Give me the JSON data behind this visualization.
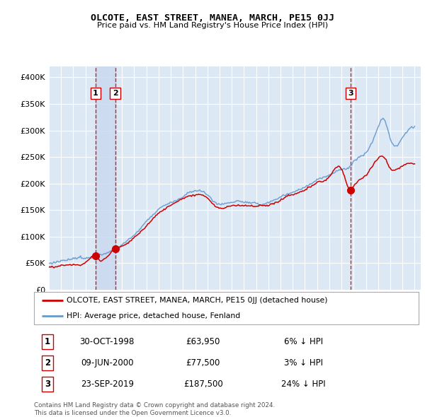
{
  "title": "OLCOTE, EAST STREET, MANEA, MARCH, PE15 0JJ",
  "subtitle": "Price paid vs. HM Land Registry's House Price Index (HPI)",
  "ylim": [
    0,
    420000
  ],
  "yticks": [
    0,
    50000,
    100000,
    150000,
    200000,
    250000,
    300000,
    350000,
    400000
  ],
  "ytick_labels": [
    "£0",
    "£50K",
    "£100K",
    "£150K",
    "£200K",
    "£250K",
    "£300K",
    "£350K",
    "£400K"
  ],
  "background_color": "#ffffff",
  "plot_bg_color": "#dde8f5",
  "grid_color": "#ffffff",
  "hpi_color": "#6699cc",
  "price_color": "#cc0000",
  "sale_marker_color": "#cc0000",
  "dashed_line_color": "#cc0000",
  "shade_color": "#c8d8ee",
  "sales": [
    {
      "date_num": 1998.83,
      "price": 63950,
      "label": "1"
    },
    {
      "date_num": 2000.44,
      "price": 77500,
      "label": "2"
    },
    {
      "date_num": 2019.73,
      "price": 187500,
      "label": "3"
    }
  ],
  "sale_labels_table": [
    {
      "num": "1",
      "date": "30-OCT-1998",
      "price": "£63,950",
      "pct": "6% ↓ HPI"
    },
    {
      "num": "2",
      "date": "09-JUN-2000",
      "price": "£77,500",
      "pct": "3% ↓ HPI"
    },
    {
      "num": "3",
      "date": "23-SEP-2019",
      "price": "£187,500",
      "pct": "24% ↓ HPI"
    }
  ],
  "legend_line1": "OLCOTE, EAST STREET, MANEA, MARCH, PE15 0JJ (detached house)",
  "legend_line2": "HPI: Average price, detached house, Fenland",
  "footer": "Contains HM Land Registry data © Crown copyright and database right 2024.\nThis data is licensed under the Open Government Licence v3.0.",
  "hpi_waypoints_x": [
    1995.0,
    1996.0,
    1997.0,
    1998.0,
    1999.0,
    2000.0,
    2001.0,
    2002.0,
    2003.0,
    2004.0,
    2005.0,
    2006.0,
    2007.0,
    2008.0,
    2009.0,
    2010.0,
    2011.0,
    2012.0,
    2013.0,
    2014.0,
    2015.0,
    2016.0,
    2017.0,
    2018.0,
    2019.0,
    2019.73,
    2020.0,
    2021.0,
    2022.0,
    2022.5,
    2023.0,
    2023.5,
    2024.0,
    2024.5,
    2025.0
  ],
  "hpi_waypoints_y": [
    47000,
    49000,
    51500,
    55000,
    62000,
    71000,
    85000,
    103000,
    125000,
    148000,
    162000,
    175000,
    185000,
    178000,
    158000,
    163000,
    163000,
    160000,
    163000,
    173000,
    185000,
    195000,
    210000,
    220000,
    235000,
    240000,
    248000,
    265000,
    310000,
    325000,
    290000,
    275000,
    290000,
    305000,
    310000
  ],
  "price_waypoints_x": [
    1995.0,
    1996.0,
    1997.0,
    1998.0,
    1998.83,
    1999.0,
    2000.0,
    2000.44,
    2001.0,
    2002.0,
    2003.0,
    2004.0,
    2005.0,
    2006.0,
    2007.0,
    2008.0,
    2009.0,
    2010.0,
    2011.0,
    2012.0,
    2013.0,
    2014.0,
    2015.0,
    2016.0,
    2017.0,
    2018.0,
    2019.0,
    2019.73,
    2020.0,
    2021.0,
    2022.0,
    2022.5,
    2023.0,
    2023.5,
    2024.0,
    2024.5,
    2025.0
  ],
  "price_waypoints_y": [
    46000,
    47500,
    50000,
    53000,
    63950,
    60000,
    68000,
    77500,
    82000,
    99000,
    120000,
    143000,
    157000,
    169000,
    178000,
    172000,
    152000,
    157000,
    157000,
    154000,
    157000,
    167000,
    178000,
    188000,
    203000,
    213000,
    228000,
    187500,
    195000,
    215000,
    248000,
    252000,
    232000,
    230000,
    237000,
    242000,
    240000
  ]
}
